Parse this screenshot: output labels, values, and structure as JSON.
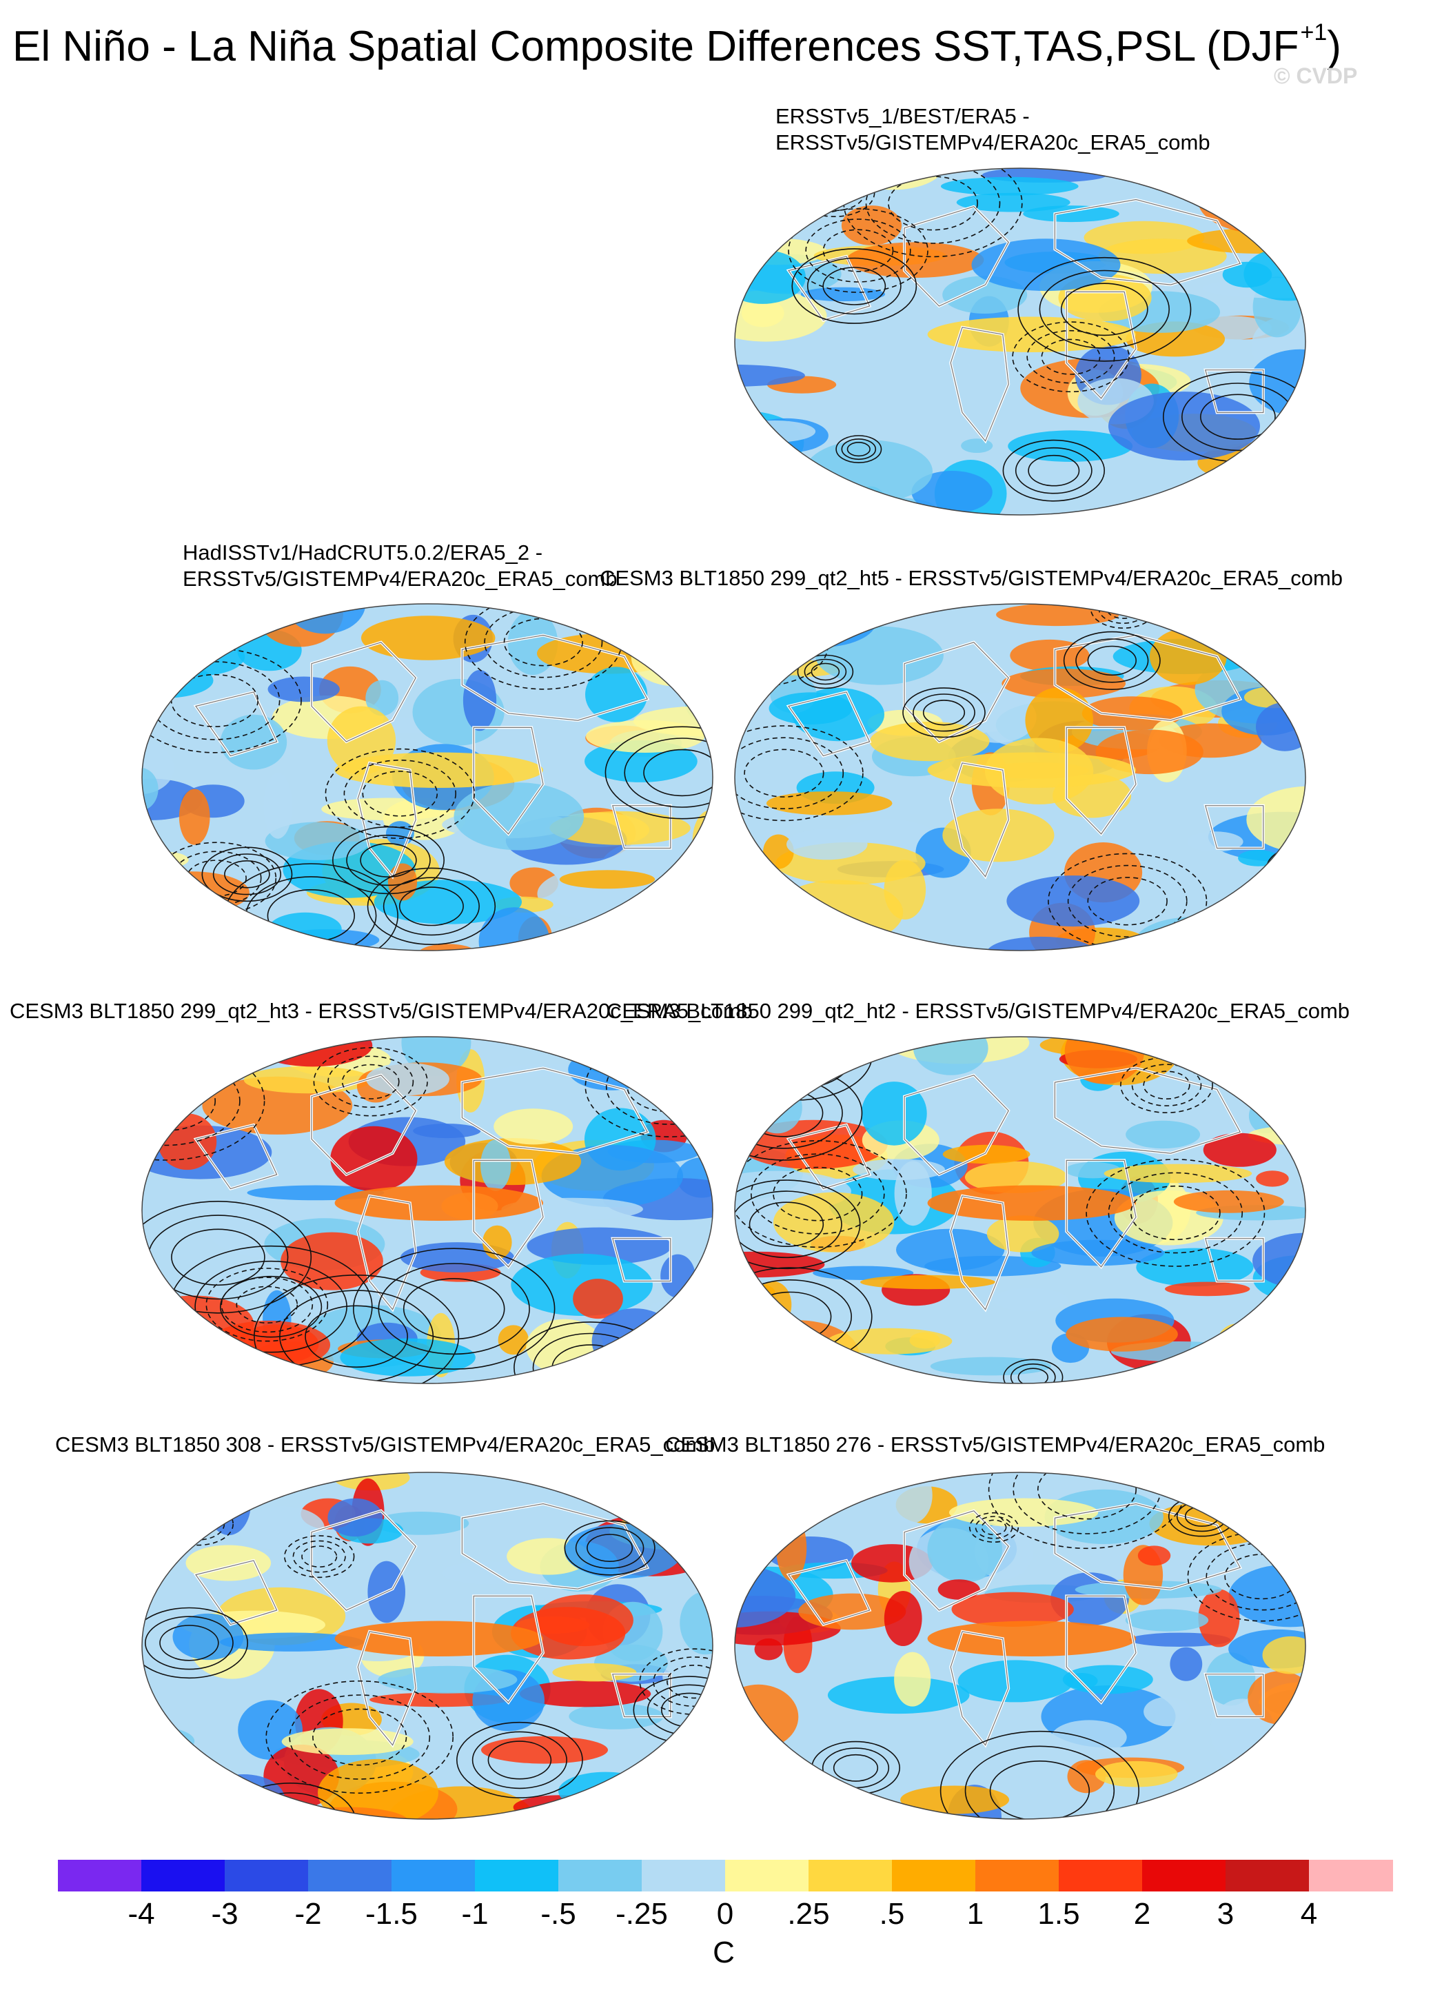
{
  "title": "El Niño - La Niña Spatial Composite Differences SST,TAS,PSL (DJF",
  "title_superscript": "+1",
  "title_closing": ")",
  "copyright": "© CVDP",
  "panels": [
    {
      "label_lines": [
        "ERSSTv5_1/BEST/ERA5 -",
        "ERSSTv5/GISTEMPv4/ERA20c_ERA5_comb"
      ]
    },
    {
      "label_lines": [
        "HadISSTv1/HadCRUT5.0.2/ERA5_2 -",
        "ERSSTv5/GISTEMPv4/ERA20c_ERA5_comb"
      ]
    },
    {
      "label_lines": [
        "CESM3 BLT1850 299_qt2_ht5 - ERSSTv5/GISTEMPv4/ERA20c_ERA5_comb"
      ]
    },
    {
      "label_lines": [
        "CESM3 BLT1850 299_qt2_ht3 - ERSSTv5/GISTEMPv4/ERA20c_ERA5_comb"
      ]
    },
    {
      "label_lines": [
        "CESM3 BLT1850 299_qt2_ht2 - ERSSTv5/GISTEMPv4/ERA20c_ERA5_comb"
      ]
    },
    {
      "label_lines": [
        "CESM3 BLT1850 308 - ERSSTv5/GISTEMPv4/ERA20c_ERA5_comb"
      ]
    },
    {
      "label_lines": [
        "CESM3 BLT1850 276 - ERSSTv5/GISTEMPv4/ERA20c_ERA5_comb"
      ]
    }
  ],
  "colorbar": {
    "unit": "C",
    "colors": [
      "#7a28f0",
      "#1a10f0",
      "#2b4ae6",
      "#3a78e8",
      "#2a98f8",
      "#10c0f8",
      "#78ccf0",
      "#b4dcf4",
      "#fff898",
      "#ffd840",
      "#ffac00",
      "#ff7a10",
      "#ff3a10",
      "#e80808",
      "#c81818",
      "#ffb4b8"
    ],
    "tick_labels": [
      "-4",
      "-3",
      "-2",
      "-1.5",
      "-1",
      "-.5",
      "-.25",
      "0",
      ".25",
      ".5",
      "1",
      "1.5",
      "2",
      "3",
      "4"
    ]
  }
}
